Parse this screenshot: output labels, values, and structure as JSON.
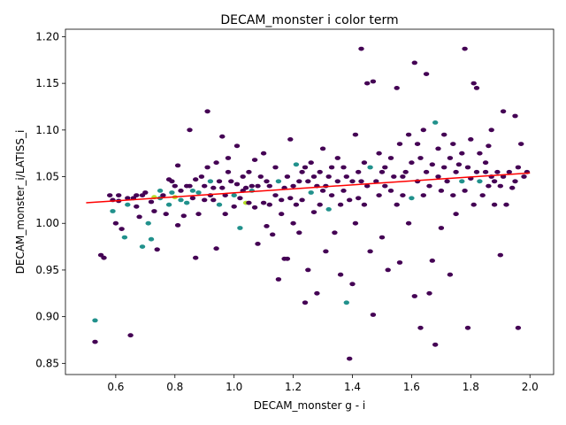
{
  "chart_data": {
    "type": "scatter",
    "title": "DECAM_monster i color term",
    "xlabel": "DECAM_monster g - i",
    "ylabel": "DECAM_monster_i/LATISS_i",
    "xlim": [
      0.43,
      2.08
    ],
    "ylim": [
      0.838,
      1.208
    ],
    "xticks": [
      0.6,
      0.8,
      1.0,
      1.2,
      1.4,
      1.6,
      1.8,
      2.0
    ],
    "xtick_labels": [
      "0.6",
      "0.8",
      "1.0",
      "1.2",
      "1.4",
      "1.6",
      "1.8",
      "2.0"
    ],
    "yticks": [
      0.85,
      0.9,
      0.95,
      1.0,
      1.05,
      1.1,
      1.15,
      1.2
    ],
    "ytick_labels": [
      "0.85",
      "0.90",
      "0.95",
      "1.00",
      "1.05",
      "1.10",
      "1.15",
      "1.20"
    ],
    "grid": false,
    "colors": {
      "low_density": "#440154",
      "mid_density": "#21918c",
      "high_density": "#b5de2b",
      "fit_line": "#ff0000"
    },
    "fit_line": {
      "x": [
        0.5,
        2.0
      ],
      "y": [
        1.022,
        1.054
      ]
    },
    "points": [
      [
        0.53,
        0.896,
        1
      ],
      [
        0.53,
        0.873,
        0
      ],
      [
        0.55,
        0.966,
        0
      ],
      [
        0.56,
        0.963,
        0
      ],
      [
        0.58,
        1.03,
        0
      ],
      [
        0.59,
        1.025,
        0
      ],
      [
        0.59,
        1.013,
        1
      ],
      [
        0.6,
        1.0,
        0
      ],
      [
        0.61,
        1.03,
        0
      ],
      [
        0.61,
        1.024,
        0
      ],
      [
        0.62,
        0.994,
        0
      ],
      [
        0.63,
        0.985,
        1
      ],
      [
        0.64,
        1.02,
        1
      ],
      [
        0.64,
        1.027,
        0
      ],
      [
        0.65,
        0.88,
        0
      ],
      [
        0.66,
        1.027,
        0
      ],
      [
        0.67,
        1.03,
        0
      ],
      [
        0.67,
        1.018,
        0
      ],
      [
        0.68,
        1.007,
        0
      ],
      [
        0.69,
        0.975,
        1
      ],
      [
        0.69,
        1.03,
        0
      ],
      [
        0.7,
        1.033,
        0
      ],
      [
        0.71,
        1.0,
        1
      ],
      [
        0.72,
        0.983,
        1
      ],
      [
        0.72,
        1.023,
        0
      ],
      [
        0.73,
        1.013,
        0
      ],
      [
        0.73,
        1.028,
        2
      ],
      [
        0.74,
        0.972,
        0
      ],
      [
        0.75,
        1.035,
        1
      ],
      [
        0.75,
        1.027,
        1
      ],
      [
        0.76,
        1.03,
        0
      ],
      [
        0.77,
        1.01,
        0
      ],
      [
        0.78,
        1.047,
        0
      ],
      [
        0.78,
        1.02,
        1
      ],
      [
        0.79,
        1.033,
        1
      ],
      [
        0.79,
        1.045,
        0
      ],
      [
        0.8,
        1.028,
        2
      ],
      [
        0.8,
        1.04,
        0
      ],
      [
        0.81,
        0.998,
        0
      ],
      [
        0.81,
        1.062,
        0
      ],
      [
        0.82,
        1.025,
        1
      ],
      [
        0.82,
        1.035,
        0
      ],
      [
        0.83,
        1.008,
        0
      ],
      [
        0.84,
        1.022,
        1
      ],
      [
        0.84,
        1.04,
        0
      ],
      [
        0.85,
        1.04,
        0
      ],
      [
        0.85,
        1.1,
        0
      ],
      [
        0.86,
        1.027,
        0
      ],
      [
        0.86,
        1.035,
        1
      ],
      [
        0.87,
        0.963,
        0
      ],
      [
        0.87,
        1.047,
        0
      ],
      [
        0.88,
        1.01,
        0
      ],
      [
        0.88,
        1.033,
        1
      ],
      [
        0.89,
        1.05,
        0
      ],
      [
        0.9,
        1.04,
        0
      ],
      [
        0.9,
        1.025,
        0
      ],
      [
        0.91,
        1.12,
        0
      ],
      [
        0.91,
        1.06,
        0
      ],
      [
        0.92,
        1.03,
        0
      ],
      [
        0.92,
        1.045,
        1
      ],
      [
        0.93,
        1.025,
        0
      ],
      [
        0.93,
        1.038,
        0
      ],
      [
        0.94,
        0.973,
        0
      ],
      [
        0.94,
        1.065,
        0
      ],
      [
        0.95,
        1.045,
        0
      ],
      [
        0.95,
        1.02,
        1
      ],
      [
        0.96,
        1.093,
        0
      ],
      [
        0.96,
        1.038,
        0
      ],
      [
        0.97,
        1.03,
        0
      ],
      [
        0.97,
        1.01,
        0
      ],
      [
        0.98,
        1.07,
        0
      ],
      [
        0.98,
        1.055,
        0
      ],
      [
        0.99,
        1.045,
        0
      ],
      [
        1.0,
        1.018,
        0
      ],
      [
        1.0,
        1.03,
        1
      ],
      [
        1.01,
        1.042,
        0
      ],
      [
        1.01,
        1.083,
        0
      ],
      [
        1.02,
        1.027,
        0
      ],
      [
        1.02,
        0.995,
        1
      ],
      [
        1.03,
        1.05,
        0
      ],
      [
        1.03,
        1.035,
        0
      ],
      [
        1.04,
        1.038,
        0
      ],
      [
        1.04,
        1.022,
        2
      ],
      [
        1.05,
        1.055,
        0
      ],
      [
        1.05,
        1.022,
        0
      ],
      [
        1.06,
        1.035,
        1
      ],
      [
        1.06,
        1.04,
        0
      ],
      [
        1.07,
        1.017,
        0
      ],
      [
        1.07,
        1.068,
        0
      ],
      [
        1.08,
        1.04,
        0
      ],
      [
        1.08,
        0.978,
        0
      ],
      [
        1.09,
        1.05,
        0
      ],
      [
        1.1,
        1.022,
        0
      ],
      [
        1.1,
        1.075,
        0
      ],
      [
        1.11,
        1.045,
        0
      ],
      [
        1.11,
        0.997,
        0
      ],
      [
        1.12,
        1.04,
        0
      ],
      [
        1.12,
        1.02,
        0
      ],
      [
        1.13,
        0.988,
        0
      ],
      [
        1.14,
        1.03,
        0
      ],
      [
        1.14,
        1.06,
        0
      ],
      [
        1.15,
        0.94,
        0
      ],
      [
        1.15,
        1.045,
        1
      ],
      [
        1.16,
        1.025,
        0
      ],
      [
        1.16,
        1.01,
        0
      ],
      [
        1.17,
        0.962,
        0
      ],
      [
        1.17,
        1.038,
        0
      ],
      [
        1.18,
        1.05,
        0
      ],
      [
        1.18,
        0.962,
        0
      ],
      [
        1.19,
        1.027,
        0
      ],
      [
        1.19,
        1.09,
        0
      ],
      [
        1.2,
        1.04,
        0
      ],
      [
        1.2,
        1.0,
        0
      ],
      [
        1.21,
        1.063,
        1
      ],
      [
        1.21,
        1.02,
        0
      ],
      [
        1.22,
        1.045,
        0
      ],
      [
        1.22,
        0.99,
        0
      ],
      [
        1.23,
        1.055,
        0
      ],
      [
        1.23,
        1.025,
        0
      ],
      [
        1.24,
        0.915,
        0
      ],
      [
        1.24,
        1.06,
        0
      ],
      [
        1.25,
        1.045,
        0
      ],
      [
        1.25,
        0.95,
        0
      ],
      [
        1.26,
        1.033,
        1
      ],
      [
        1.26,
        1.065,
        0
      ],
      [
        1.27,
        1.05,
        0
      ],
      [
        1.27,
        1.012,
        0
      ],
      [
        1.28,
        1.04,
        0
      ],
      [
        1.28,
        0.925,
        0
      ],
      [
        1.29,
        1.055,
        0
      ],
      [
        1.29,
        1.02,
        0
      ],
      [
        1.3,
        1.035,
        0
      ],
      [
        1.3,
        1.08,
        0
      ],
      [
        1.31,
        0.97,
        0
      ],
      [
        1.31,
        1.04,
        0
      ],
      [
        1.32,
        1.05,
        0
      ],
      [
        1.32,
        1.015,
        1
      ],
      [
        1.33,
        1.03,
        0
      ],
      [
        1.33,
        1.06,
        0
      ],
      [
        1.34,
        0.99,
        0
      ],
      [
        1.35,
        1.045,
        0
      ],
      [
        1.35,
        1.07,
        0
      ],
      [
        1.36,
        1.02,
        0
      ],
      [
        1.36,
        0.945,
        0
      ],
      [
        1.37,
        1.06,
        0
      ],
      [
        1.37,
        1.035,
        0
      ],
      [
        1.38,
        0.915,
        1
      ],
      [
        1.38,
        1.05,
        0
      ],
      [
        1.39,
        1.025,
        0
      ],
      [
        1.39,
        0.855,
        0
      ],
      [
        1.4,
        1.045,
        0
      ],
      [
        1.4,
        0.935,
        0
      ],
      [
        1.41,
        1.095,
        0
      ],
      [
        1.41,
        1.0,
        0
      ],
      [
        1.42,
        1.055,
        0
      ],
      [
        1.42,
        1.027,
        0
      ],
      [
        1.43,
        1.187,
        0
      ],
      [
        1.43,
        1.045,
        0
      ],
      [
        1.44,
        1.065,
        0
      ],
      [
        1.44,
        1.02,
        0
      ],
      [
        1.45,
        1.15,
        0
      ],
      [
        1.45,
        1.04,
        0
      ],
      [
        1.46,
        0.97,
        0
      ],
      [
        1.46,
        1.06,
        1
      ],
      [
        1.47,
        1.152,
        0
      ],
      [
        1.47,
        0.902,
        0
      ],
      [
        1.48,
        1.045,
        0
      ],
      [
        1.49,
        1.03,
        0
      ],
      [
        1.49,
        1.075,
        0
      ],
      [
        1.5,
        1.055,
        0
      ],
      [
        1.5,
        0.985,
        0
      ],
      [
        1.51,
        1.04,
        0
      ],
      [
        1.51,
        1.06,
        0
      ],
      [
        1.52,
        0.95,
        0
      ],
      [
        1.53,
        1.035,
        0
      ],
      [
        1.53,
        1.07,
        0
      ],
      [
        1.54,
        1.05,
        0
      ],
      [
        1.55,
        1.145,
        0
      ],
      [
        1.55,
        1.02,
        0
      ],
      [
        1.56,
        0.958,
        0
      ],
      [
        1.56,
        1.085,
        0
      ],
      [
        1.57,
        1.05,
        0
      ],
      [
        1.57,
        1.03,
        0
      ],
      [
        1.58,
        1.055,
        0
      ],
      [
        1.59,
        1.095,
        0
      ],
      [
        1.59,
        1.0,
        0
      ],
      [
        1.6,
        1.027,
        1
      ],
      [
        1.6,
        1.065,
        0
      ],
      [
        1.61,
        1.172,
        0
      ],
      [
        1.61,
        0.922,
        0
      ],
      [
        1.62,
        1.045,
        0
      ],
      [
        1.62,
        1.085,
        0
      ],
      [
        1.63,
        0.888,
        0
      ],
      [
        1.63,
        1.07,
        0
      ],
      [
        1.64,
        1.03,
        0
      ],
      [
        1.64,
        1.1,
        0
      ],
      [
        1.65,
        1.16,
        0
      ],
      [
        1.65,
        1.055,
        0
      ],
      [
        1.66,
        0.925,
        0
      ],
      [
        1.66,
        1.04,
        0
      ],
      [
        1.67,
        1.063,
        0
      ],
      [
        1.67,
        0.96,
        0
      ],
      [
        1.68,
        1.108,
        1
      ],
      [
        1.68,
        0.87,
        0
      ],
      [
        1.69,
        1.05,
        0
      ],
      [
        1.69,
        1.08,
        0
      ],
      [
        1.7,
        1.035,
        0
      ],
      [
        1.7,
        0.995,
        0
      ],
      [
        1.71,
        1.095,
        0
      ],
      [
        1.71,
        1.06,
        0
      ],
      [
        1.72,
        1.045,
        0
      ],
      [
        1.73,
        1.07,
        0
      ],
      [
        1.73,
        0.945,
        0
      ],
      [
        1.74,
        1.085,
        0
      ],
      [
        1.74,
        1.03,
        0
      ],
      [
        1.75,
        1.055,
        0
      ],
      [
        1.75,
        1.01,
        0
      ],
      [
        1.76,
        1.063,
        0
      ],
      [
        1.77,
        1.045,
        1
      ],
      [
        1.77,
        1.075,
        0
      ],
      [
        1.78,
        1.187,
        0
      ],
      [
        1.78,
        1.035,
        0
      ],
      [
        1.79,
        1.06,
        0
      ],
      [
        1.79,
        0.888,
        0
      ],
      [
        1.8,
        1.048,
        0
      ],
      [
        1.8,
        1.09,
        0
      ],
      [
        1.81,
        1.15,
        0
      ],
      [
        1.81,
        1.02,
        0
      ],
      [
        1.82,
        1.055,
        0
      ],
      [
        1.82,
        1.145,
        0
      ],
      [
        1.83,
        1.045,
        1
      ],
      [
        1.83,
        1.075,
        0
      ],
      [
        1.84,
        1.03,
        0
      ],
      [
        1.85,
        1.055,
        0
      ],
      [
        1.85,
        1.065,
        0
      ],
      [
        1.86,
        1.04,
        0
      ],
      [
        1.86,
        1.083,
        0
      ],
      [
        1.87,
        1.05,
        0
      ],
      [
        1.87,
        1.1,
        0
      ],
      [
        1.88,
        1.045,
        0
      ],
      [
        1.88,
        1.02,
        0
      ],
      [
        1.89,
        1.055,
        0
      ],
      [
        1.9,
        0.966,
        0
      ],
      [
        1.9,
        1.04,
        0
      ],
      [
        1.91,
        1.12,
        0
      ],
      [
        1.91,
        1.05,
        0
      ],
      [
        1.92,
        1.02,
        0
      ],
      [
        1.93,
        1.055,
        0
      ],
      [
        1.94,
        1.038,
        0
      ],
      [
        1.95,
        1.115,
        0
      ],
      [
        1.95,
        1.045,
        0
      ],
      [
        1.96,
        0.888,
        0
      ],
      [
        1.96,
        1.06,
        0
      ],
      [
        1.97,
        1.085,
        0
      ],
      [
        1.98,
        1.05,
        0
      ],
      [
        1.99,
        1.055,
        0
      ]
    ]
  }
}
